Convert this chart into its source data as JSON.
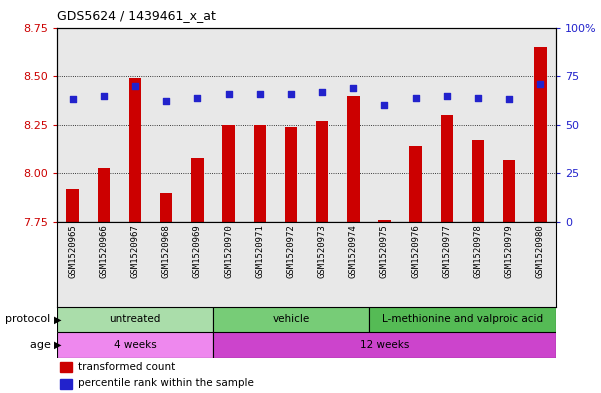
{
  "title": "GDS5624 / 1439461_x_at",
  "samples": [
    "GSM1520965",
    "GSM1520966",
    "GSM1520967",
    "GSM1520968",
    "GSM1520969",
    "GSM1520970",
    "GSM1520971",
    "GSM1520972",
    "GSM1520973",
    "GSM1520974",
    "GSM1520975",
    "GSM1520976",
    "GSM1520977",
    "GSM1520978",
    "GSM1520979",
    "GSM1520980"
  ],
  "transformed_count": [
    7.92,
    8.03,
    8.49,
    7.9,
    8.08,
    8.25,
    8.25,
    8.24,
    8.27,
    8.4,
    7.76,
    8.14,
    8.3,
    8.17,
    8.07,
    8.65
  ],
  "percentile_rank": [
    63,
    65,
    70,
    62,
    64,
    66,
    66,
    66,
    67,
    69,
    60,
    64,
    65,
    64,
    63,
    71
  ],
  "ylim_left": [
    7.75,
    8.75
  ],
  "ylim_right": [
    0,
    100
  ],
  "yticks_left": [
    7.75,
    8.0,
    8.25,
    8.5,
    8.75
  ],
  "yticks_right": [
    0,
    25,
    50,
    75,
    100
  ],
  "bar_color": "#cc0000",
  "dot_color": "#2222cc",
  "plot_bg": "#e8e8e8",
  "proto_colors": [
    "#aaddaa",
    "#77cc77",
    "#55bb55"
  ],
  "age_colors": [
    "#ee88ee",
    "#cc44cc"
  ],
  "protocol_groups": [
    {
      "label": "untreated",
      "start": 0,
      "end": 5
    },
    {
      "label": "vehicle",
      "start": 5,
      "end": 10
    },
    {
      "label": "L-methionine and valproic acid",
      "start": 10,
      "end": 16
    }
  ],
  "age_groups": [
    {
      "label": "4 weeks",
      "start": 0,
      "end": 5
    },
    {
      "label": "12 weeks",
      "start": 5,
      "end": 16
    }
  ],
  "legend_items": [
    {
      "color": "#cc0000",
      "label": "transformed count"
    },
    {
      "color": "#2222cc",
      "label": "percentile rank within the sample"
    }
  ]
}
